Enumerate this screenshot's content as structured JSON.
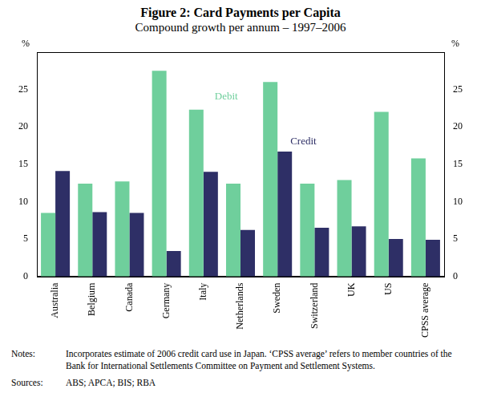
{
  "chart_data": {
    "type": "bar",
    "title": "Figure 2: Card Payments per Capita",
    "subtitle": "Compound growth per annum – 1997–2006",
    "ylabel": "%",
    "categories": [
      "Australia",
      "Belgium",
      "Canada",
      "Germany",
      "Italy",
      "Netherlands",
      "Sweden",
      "Switzerland",
      "UK",
      "US",
      "CPSS average"
    ],
    "series": [
      {
        "name": "Debit",
        "color": "#6fcf9c",
        "values": [
          8.5,
          12.4,
          12.7,
          27.5,
          22.3,
          12.4,
          26.0,
          12.4,
          12.9,
          22.0,
          15.8
        ]
      },
      {
        "name": "Credit",
        "color": "#2e2f66",
        "values": [
          14.1,
          8.6,
          8.5,
          3.4,
          14.0,
          6.2,
          16.7,
          6.5,
          6.7,
          5.0,
          4.9
        ]
      }
    ],
    "ylim": [
      0,
      30
    ],
    "yticks": [
      0,
      5,
      10,
      15,
      20,
      25
    ],
    "grid": false,
    "notes": {
      "label": "Notes:",
      "text": "Incorporates estimate of 2006 credit card use in Japan. ‘CPSS average’ refers to member countries of the Bank for International Settlements Committee on Payment and Settlement Systems."
    },
    "sources": {
      "label": "Sources:",
      "text": "ABS; APCA; BIS; RBA"
    }
  }
}
